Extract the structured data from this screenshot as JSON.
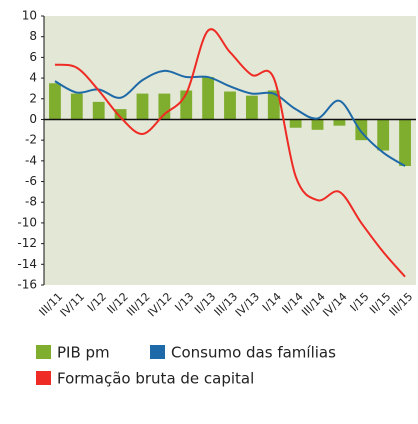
{
  "chart_data": {
    "type": "bar",
    "categories": [
      "III/11",
      "IV/11",
      "I/12",
      "II/12",
      "III/12",
      "IV/12",
      "I/13",
      "II/13",
      "III/13",
      "IV/13",
      "I/14",
      "II/14",
      "III/14",
      "IV/14",
      "I/15",
      "II/15",
      "III/15"
    ],
    "series": [
      {
        "name": "PIB pm",
        "type": "bar",
        "color": "#7fad2e",
        "values": [
          3.5,
          2.5,
          1.7,
          1.0,
          2.5,
          2.5,
          2.8,
          4.1,
          2.7,
          2.3,
          2.8,
          -0.8,
          -1.0,
          -0.6,
          -2.0,
          -3.0,
          -4.5
        ]
      },
      {
        "name": "Consumo das famílias",
        "type": "line",
        "color": "#1e6aa8",
        "values": [
          3.7,
          2.6,
          2.9,
          2.1,
          3.8,
          4.7,
          4.1,
          4.1,
          3.2,
          2.5,
          2.5,
          1.0,
          0.1,
          1.8,
          -1.2,
          -3.2,
          -4.5
        ]
      },
      {
        "name": "Formação bruta de capital",
        "type": "line",
        "color": "#ee2b24",
        "values": [
          5.3,
          5.0,
          2.8,
          0.2,
          -1.4,
          0.5,
          2.5,
          8.6,
          6.5,
          4.3,
          4.0,
          -5.5,
          -7.8,
          -7.0,
          -10.0,
          -12.8,
          -15.2
        ]
      }
    ],
    "ylim": [
      -16,
      10
    ],
    "yticks": [
      -16,
      -14,
      -12,
      -10,
      -8,
      -6,
      -4,
      -2,
      0,
      2,
      4,
      6,
      8,
      10
    ]
  }
}
